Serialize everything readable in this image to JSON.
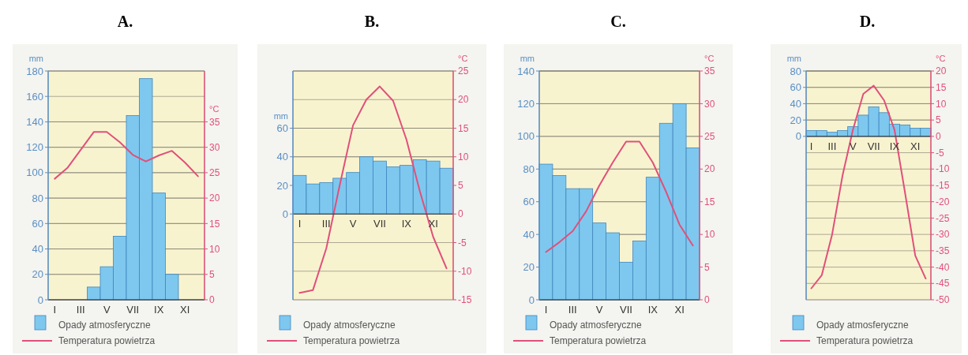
{
  "chart_data": [
    {
      "type": "bar",
      "title": "A.",
      "categories": [
        "I",
        null,
        "III",
        null,
        "V",
        null,
        "VII",
        null,
        "IX",
        null,
        "XI",
        null
      ],
      "ylabel": "mm",
      "y2label": "°C",
      "ylim": [
        0,
        180
      ],
      "yticks": [
        0,
        20,
        40,
        60,
        80,
        100,
        120,
        140,
        160,
        180
      ],
      "y2lim": [
        0,
        45
      ],
      "y2ticks": [
        0,
        5,
        10,
        15,
        20,
        25,
        30,
        35
      ],
      "grid": true,
      "legend": "bottom",
      "series": [
        {
          "name": "Opady atmosferyczne",
          "color": "#7ec8ef",
          "values": [
            0,
            0,
            0,
            10,
            26,
            50,
            145,
            174,
            84,
            20,
            0,
            0
          ]
        },
        {
          "name": "Temperatura powietrza",
          "type": "line",
          "axis": "y2",
          "color": "#e0507a",
          "values": [
            23.8,
            26,
            29.5,
            33,
            33,
            31,
            28.5,
            27.2,
            28.4,
            29.3,
            27,
            24.3
          ]
        }
      ]
    },
    {
      "type": "bar",
      "title": "B.",
      "categories": [
        "I",
        null,
        "III",
        null,
        "V",
        null,
        "VII",
        null,
        "IX",
        null,
        "XI",
        null
      ],
      "ylabel": "mm",
      "y2label": "°C",
      "ylim": [
        -60,
        100
      ],
      "yticks": [
        0,
        20,
        40,
        60
      ],
      "y2lim": [
        -15,
        25
      ],
      "y2ticks": [
        -15,
        -10,
        -5,
        0,
        5,
        10,
        15,
        20,
        25
      ],
      "grid": true,
      "legend": "bottom",
      "series": [
        {
          "name": "Opady atmosferyczne",
          "color": "#7ec8ef",
          "values": [
            27,
            21,
            22,
            25,
            29,
            40,
            37,
            33,
            34,
            38,
            37,
            32
          ]
        },
        {
          "name": "Temperatura powietrza",
          "type": "line",
          "axis": "y2",
          "color": "#e0507a",
          "values": [
            -13.8,
            -13.3,
            -6,
            5,
            15.5,
            20,
            22.3,
            19.8,
            13,
            4,
            -4,
            -9.5
          ]
        }
      ]
    },
    {
      "type": "bar",
      "title": "C.",
      "categories": [
        "I",
        null,
        "III",
        null,
        "V",
        null,
        "VII",
        null,
        "IX",
        null,
        "XI",
        null
      ],
      "ylabel": "mm",
      "y2label": "°C",
      "ylim": [
        0,
        140
      ],
      "yticks": [
        0,
        20,
        40,
        60,
        80,
        100,
        120,
        140
      ],
      "y2lim": [
        0,
        35
      ],
      "y2ticks": [
        0,
        5,
        10,
        15,
        20,
        25,
        30,
        35
      ],
      "grid": true,
      "legend": "bottom",
      "series": [
        {
          "name": "Opady atmosferyczne",
          "color": "#7ec8ef",
          "values": [
            83,
            76,
            68,
            68,
            47,
            41,
            23,
            36,
            75,
            108,
            120,
            93
          ]
        },
        {
          "name": "Temperatura powietrza",
          "type": "line",
          "axis": "y2",
          "color": "#e0507a",
          "values": [
            7.3,
            8.8,
            10.5,
            13.5,
            17.5,
            21,
            24.2,
            24.2,
            21,
            16.5,
            11.5,
            8.3
          ]
        }
      ]
    },
    {
      "type": "bar",
      "title": "D.",
      "categories": [
        "I",
        null,
        "III",
        null,
        "V",
        null,
        "VII",
        null,
        "IX",
        null,
        "XI",
        null
      ],
      "ylabel": "mm",
      "y2label": "°C",
      "ylim": [
        -200,
        80
      ],
      "yticks": [
        0,
        20,
        40,
        60,
        80
      ],
      "y2lim": [
        -50,
        20
      ],
      "y2ticks": [
        -50,
        -45,
        -40,
        -35,
        -30,
        -25,
        -20,
        -15,
        -10,
        -5,
        0,
        5,
        10,
        15,
        20
      ],
      "grid": true,
      "legend": "bottom",
      "series": [
        {
          "name": "Opady atmosferyczne",
          "color": "#7ec8ef",
          "values": [
            7,
            7,
            5,
            7,
            12,
            26,
            36,
            29,
            15,
            14,
            10,
            10
          ]
        },
        {
          "name": "Temperatura powietrza",
          "type": "line",
          "axis": "y2",
          "color": "#e0507a",
          "values": [
            -46.5,
            -42.5,
            -30,
            -12,
            2,
            13,
            15.5,
            11,
            2,
            -17,
            -36.5,
            -43.5
          ]
        }
      ]
    }
  ]
}
